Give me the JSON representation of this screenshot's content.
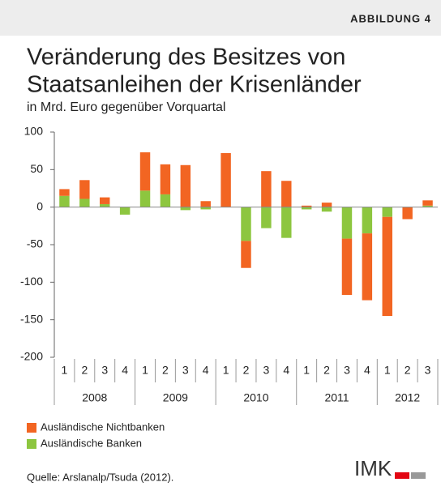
{
  "chart_data": {
    "type": "bar",
    "stacked": true,
    "label": "ABBILDUNG 4",
    "title": [
      "Veränderung des Besitzes von",
      "Staatsanleihen der Krisenländer"
    ],
    "subtitle": "in Mrd. Euro gegenüber Vorquartal",
    "groups": [
      {
        "label": "2008",
        "categories": [
          "1",
          "2",
          "3",
          "4"
        ]
      },
      {
        "label": "2009",
        "categories": [
          "1",
          "2",
          "3",
          "4"
        ]
      },
      {
        "label": "2010",
        "categories": [
          "1",
          "2",
          "3",
          "4"
        ]
      },
      {
        "label": "2011",
        "categories": [
          "1",
          "2",
          "3",
          "4"
        ]
      },
      {
        "label": "2012",
        "categories": [
          "1",
          "2",
          "3"
        ]
      }
    ],
    "series": [
      {
        "name": "Ausländische Nichtbanken",
        "color": "#f26522",
        "values": [
          9,
          25,
          9,
          0,
          51,
          40,
          56,
          8,
          72,
          -36,
          48,
          35,
          2,
          6,
          -75,
          -89,
          -132,
          -16,
          7
        ]
      },
      {
        "name": "Ausländische Banken",
        "color": "#8dc63f",
        "values": [
          15,
          11,
          4,
          -10,
          22,
          17,
          -4,
          -3,
          0,
          -45,
          -28,
          -41,
          -3,
          -6,
          -42,
          -35,
          -13,
          0,
          2
        ]
      }
    ],
    "ylim": [
      -200,
      100
    ],
    "yticks": [
      -200,
      -150,
      -100,
      -50,
      0,
      50,
      100
    ],
    "source": "Quelle: Arslanalp/Tsuda (2012).",
    "logo": "IMK"
  }
}
